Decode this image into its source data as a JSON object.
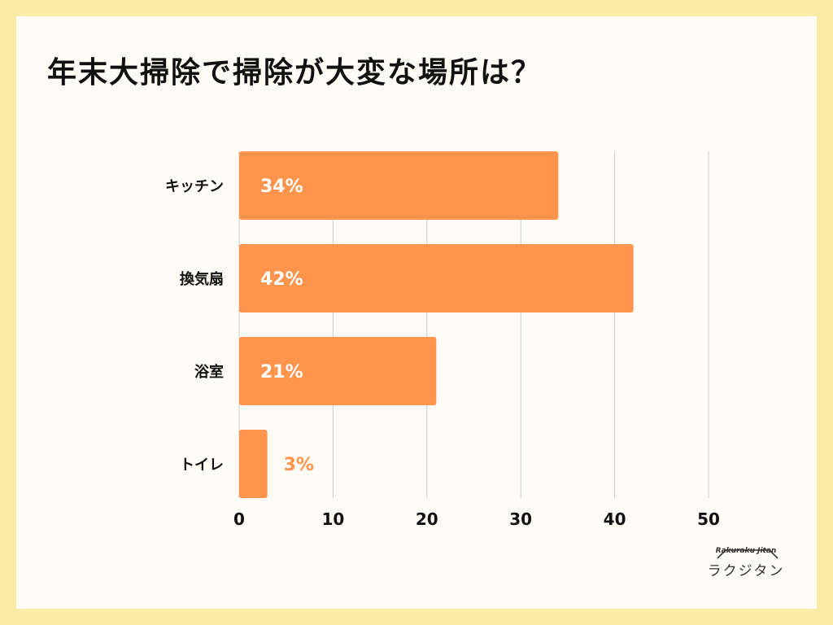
{
  "title": "年末大掃除で掃除が大変な場所は？",
  "chart_data": {
    "type": "bar",
    "orientation": "horizontal",
    "title": "年末大掃除で掃除が大変な場所は？",
    "categories": [
      "キッチン",
      "換気扇",
      "浴室",
      "トイレ"
    ],
    "values": [
      34,
      42,
      21,
      3
    ],
    "data_labels": [
      "34%",
      "42%",
      "21%",
      "3%"
    ],
    "xlim": [
      0,
      50
    ],
    "ticks": [
      "0",
      "10",
      "20",
      "30",
      "40",
      "50"
    ],
    "grid": true,
    "colors": {
      "bar": "#FF944D",
      "label_inside": "#FFFFFF",
      "label_outside": "#FF944D",
      "grid": "#CCCCCC"
    }
  },
  "logo": {
    "sub": "Rakuraku Jitan",
    "main": "ラクジタン"
  }
}
